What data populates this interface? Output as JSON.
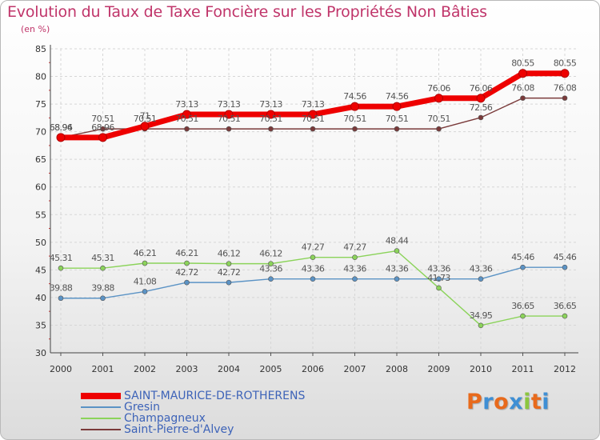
{
  "chart_data": {
    "type": "line",
    "title": "Evolution du Taux de Taxe Foncière sur les Propriétés Non Bâties",
    "ylabel": "(en %)",
    "xlabel": "",
    "ylim": [
      30,
      85
    ],
    "yticks": [
      30,
      35,
      40,
      45,
      50,
      55,
      60,
      65,
      70,
      75,
      80,
      85
    ],
    "grid": true,
    "legend_position": "bottom-left",
    "x": [
      "2000",
      "2001",
      "2002",
      "2003",
      "2004",
      "2005",
      "2006",
      "2007",
      "2008",
      "2009",
      "2010",
      "2011",
      "2012"
    ],
    "series": [
      {
        "name": "Saint-Pierre-d'Alvey",
        "color": "#7a3a3a",
        "values": [
          68.94,
          70.51,
          70.51,
          70.51,
          70.51,
          70.51,
          70.51,
          70.51,
          70.51,
          70.51,
          72.56,
          76.08,
          76.08
        ],
        "labels": [
          "68.94",
          "70.51",
          "70.51",
          "70.51",
          "70.51",
          "70.51",
          "70.51",
          "70.51",
          "70.51",
          "70.51",
          "72.56",
          "76.08",
          "76.08"
        ]
      },
      {
        "name": "SAINT-MAURICE-DE-ROTHERENS",
        "color": "#ee0000",
        "values": [
          68.96,
          68.96,
          71,
          73.13,
          73.13,
          73.13,
          73.13,
          74.56,
          74.56,
          76.06,
          76.06,
          80.55,
          80.55
        ],
        "labels": [
          "68.96",
          "68.96",
          "71",
          "73.13",
          "73.13",
          "73.13",
          "73.13",
          "74.56",
          "74.56",
          "76.06",
          "76.06",
          "80.55",
          "80.55"
        ]
      },
      {
        "name": "Gresin",
        "color": "#5b93c5",
        "values": [
          39.88,
          39.88,
          41.08,
          42.72,
          42.72,
          43.36,
          43.36,
          43.36,
          43.36,
          43.36,
          43.36,
          45.46,
          45.46
        ],
        "labels": [
          "39.88",
          "39.88",
          "41.08",
          "42.72",
          "42.72",
          "43.36",
          "43.36",
          "43.36",
          "43.36",
          "43.36",
          "43.36",
          "45.46",
          "45.46"
        ]
      },
      {
        "name": "Champagneux",
        "color": "#8bd35a",
        "values": [
          45.31,
          45.31,
          46.21,
          46.21,
          46.12,
          46.12,
          47.27,
          47.27,
          48.44,
          41.73,
          34.95,
          36.65,
          36.65
        ],
        "labels": [
          "45.31",
          "45.31",
          "46.21",
          "46.21",
          "46.12",
          "46.12",
          "47.27",
          "47.27",
          "48.44",
          "41.73",
          "34.95",
          "36.65",
          "36.65"
        ]
      }
    ],
    "legend": [
      {
        "name": "SAINT-MAURICE-DE-ROTHERENS",
        "color": "#ee0000",
        "text_color": "#3d63b8"
      },
      {
        "name": "Gresin",
        "color": "#5b93c5",
        "text_color": "#3d63b8"
      },
      {
        "name": "Champagneux",
        "color": "#8bd35a",
        "text_color": "#3d63b8"
      },
      {
        "name": "Saint-Pierre-d'Alvey",
        "color": "#7a3a3a",
        "text_color": "#3d63b8"
      }
    ]
  },
  "brand": {
    "text": "Proxiti",
    "letter_colors": [
      "#e86a1c",
      "#3f8fd4",
      "#e86a1c",
      "#3f8fd4",
      "#8cc63f",
      "#e86a1c",
      "#3f8fd4"
    ]
  }
}
